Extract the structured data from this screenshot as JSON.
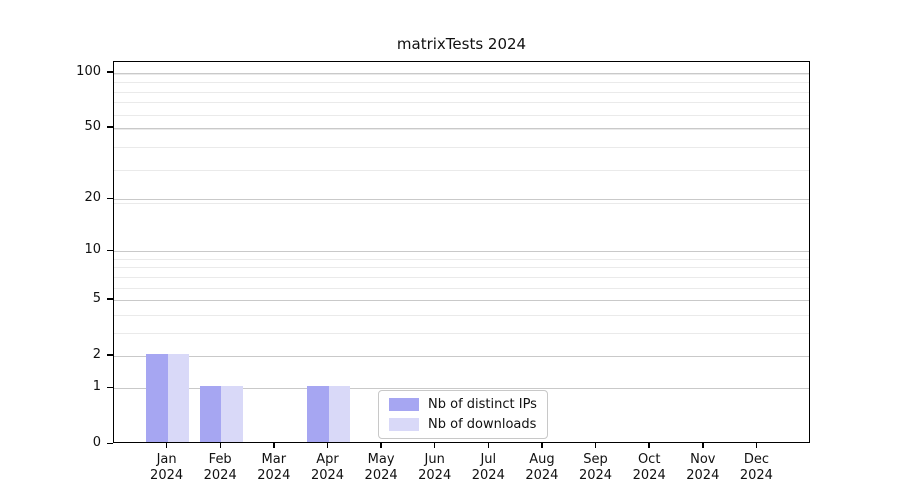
{
  "chart_data": {
    "type": "bar",
    "title": "matrixTests 2024",
    "xlabel": "",
    "ylabel": "",
    "categories": [
      "Jan",
      "Feb",
      "Mar",
      "Apr",
      "May",
      "Jun",
      "Jul",
      "Aug",
      "Sep",
      "Oct",
      "Nov",
      "Dec"
    ],
    "year_label": "2024",
    "series": [
      {
        "name": "Nb of distinct IPs",
        "color": "#a6a6f2",
        "values": [
          2,
          1,
          0,
          1,
          0,
          0,
          0,
          0,
          0,
          0,
          0,
          0
        ]
      },
      {
        "name": "Nb of downloads",
        "color": "#d9d9f8",
        "values": [
          2,
          1,
          0,
          1,
          0,
          0,
          0,
          0,
          0,
          0,
          0,
          0
        ]
      }
    ],
    "yticks": [
      0,
      1,
      2,
      5,
      10,
      20,
      50,
      100
    ],
    "scale": "log1p",
    "ylim": [
      0,
      100
    ],
    "grid": "horizontal, major and minor",
    "legend_position": "inside bottom-center"
  },
  "colors": {
    "background": "#ffffff",
    "axis": "#000000",
    "major_grid": "#c9c9c9",
    "minor_grid": "#eaeaea",
    "legend_border": "#c8c8c8",
    "text": "#111111"
  }
}
